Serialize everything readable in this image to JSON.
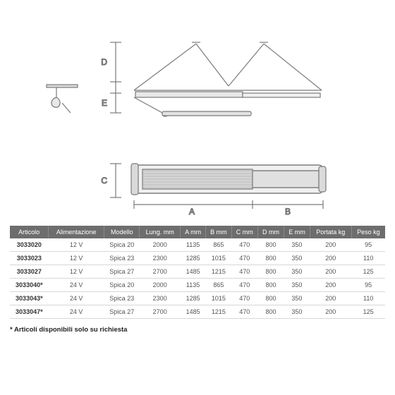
{
  "diagram": {
    "labels": {
      "A": "A",
      "B": "B",
      "C": "C",
      "D": "D",
      "E": "E"
    },
    "stroke": "#7a7a7a",
    "fill_light": "#e8e8e8",
    "fill_pattern": "#b8b8b8"
  },
  "table": {
    "header_bg": "#6d6d6d",
    "header_fg": "#ffffff",
    "row_border": "#d7d7d7",
    "columns": [
      "Articolo",
      "Alimentazione",
      "Modello",
      "Lung. mm",
      "A mm",
      "B mm",
      "C mm",
      "D mm",
      "E mm",
      "Portata kg",
      "Peso kg"
    ],
    "rows": [
      [
        "3033020",
        "12 V",
        "Spica 20",
        "2000",
        "1135",
        "865",
        "470",
        "800",
        "350",
        "200",
        "95"
      ],
      [
        "3033023",
        "12 V",
        "Spica 23",
        "2300",
        "1285",
        "1015",
        "470",
        "800",
        "350",
        "200",
        "110"
      ],
      [
        "3033027",
        "12 V",
        "Spica 27",
        "2700",
        "1485",
        "1215",
        "470",
        "800",
        "350",
        "200",
        "125"
      ],
      [
        "3033040*",
        "24 V",
        "Spica 20",
        "2000",
        "1135",
        "865",
        "470",
        "800",
        "350",
        "200",
        "95"
      ],
      [
        "3033043*",
        "24 V",
        "Spica 23",
        "2300",
        "1285",
        "1015",
        "470",
        "800",
        "350",
        "200",
        "110"
      ],
      [
        "3033047*",
        "24 V",
        "Spica 27",
        "2700",
        "1485",
        "1215",
        "470",
        "800",
        "350",
        "200",
        "125"
      ]
    ]
  },
  "footnote": "* Articoli disponibili solo su richiesta"
}
